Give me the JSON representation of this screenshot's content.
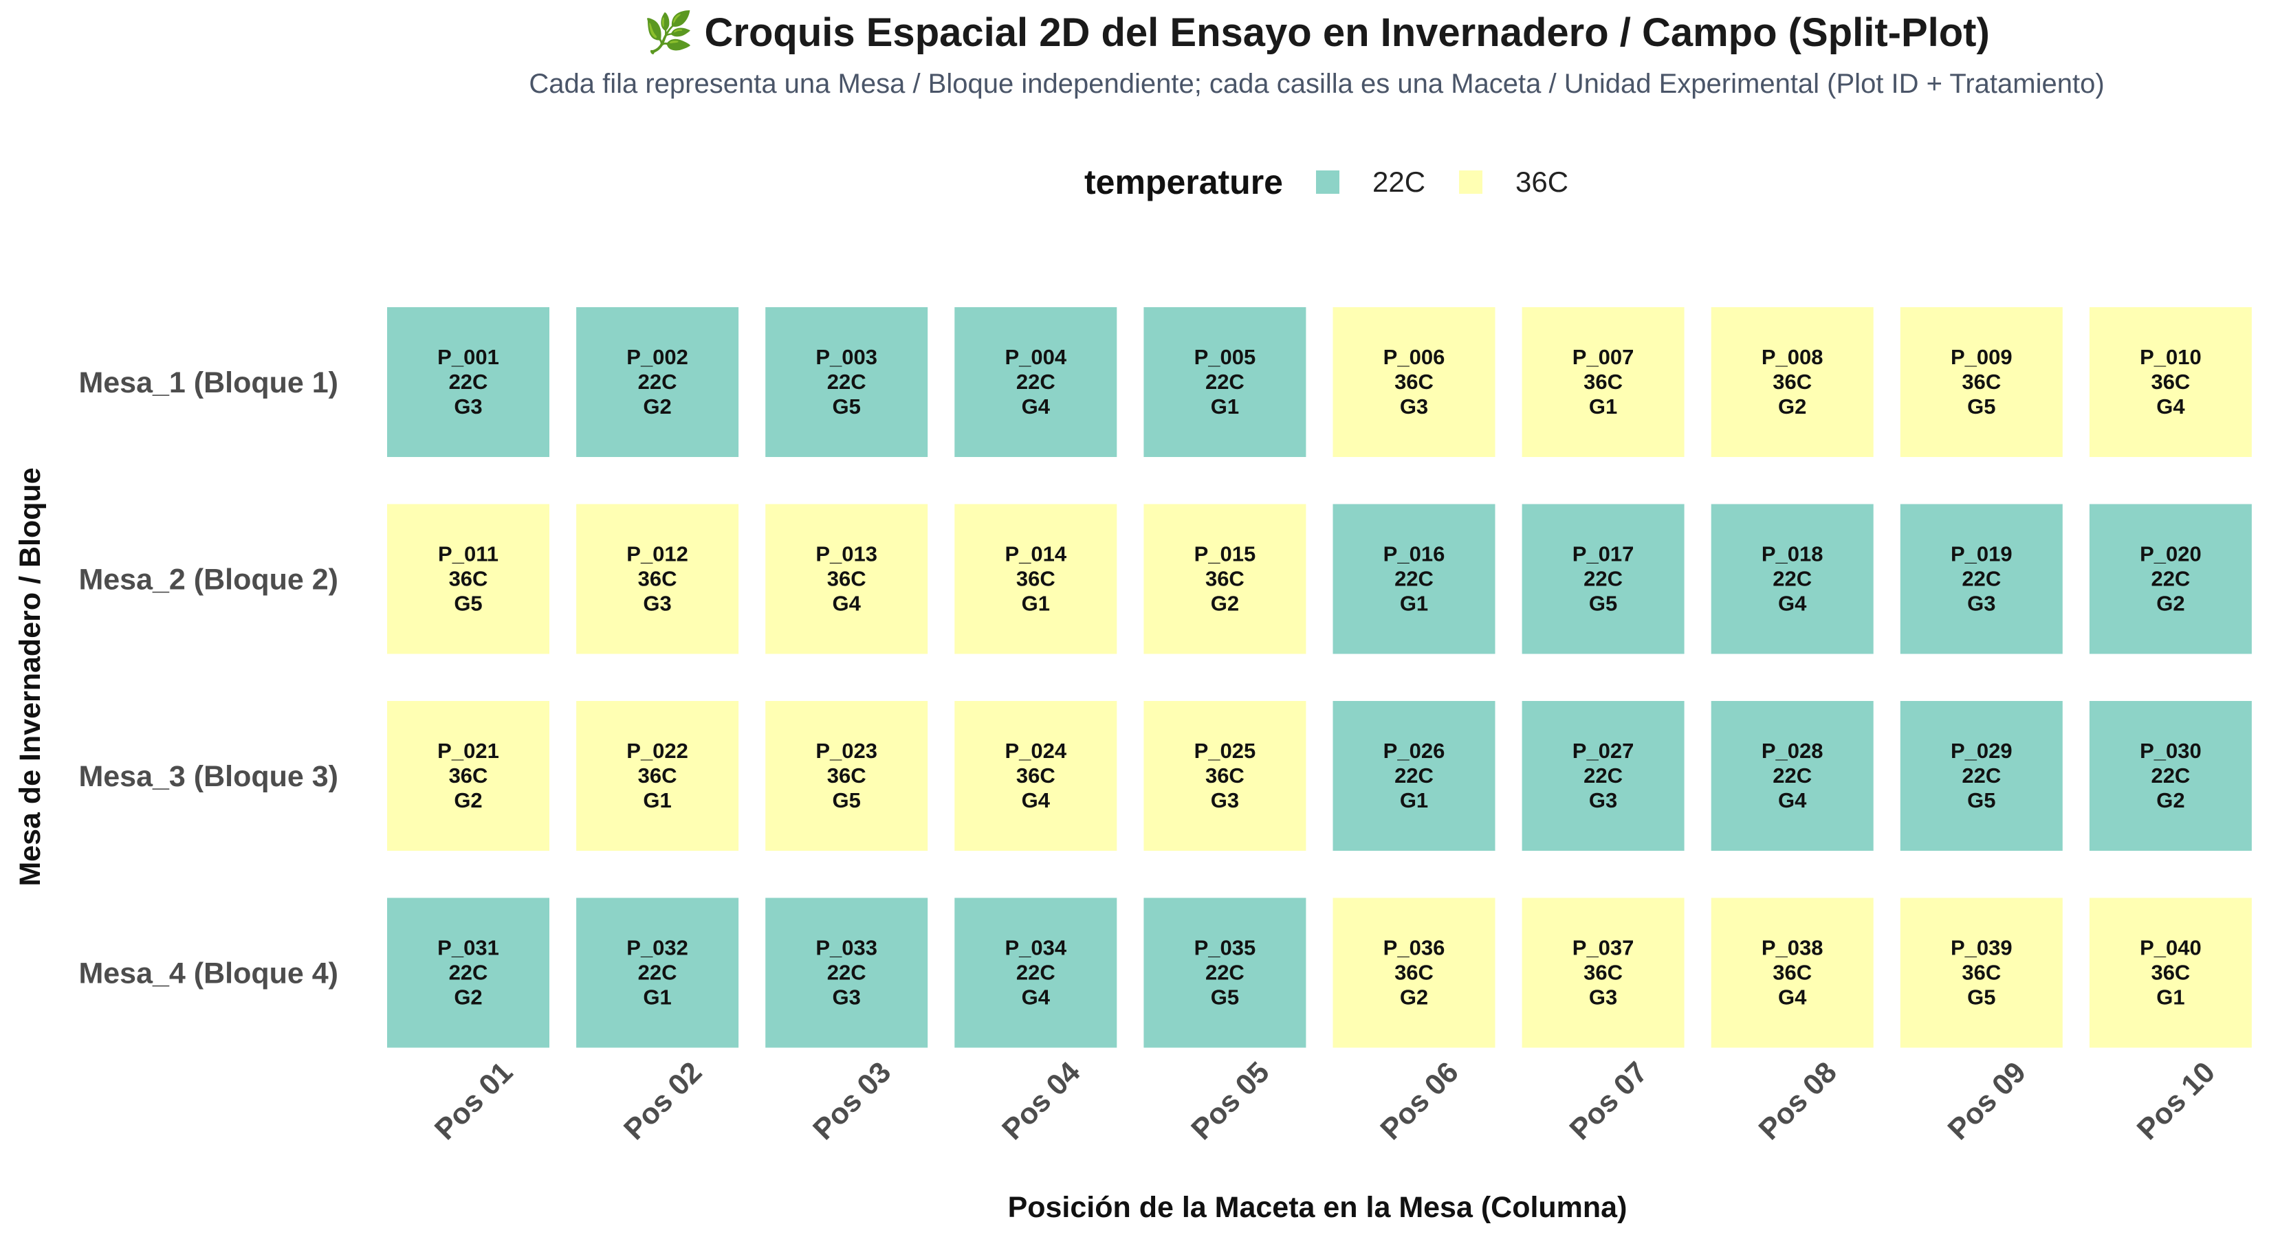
{
  "title": "🌿 Croquis Espacial 2D del Ensayo en Invernadero / Campo (Split-Plot)",
  "subtitle": "Cada fila representa una Mesa / Bloque independiente; cada casilla es una Maceta / Unidad Experimental (Plot ID + Tratamiento)",
  "chart_data": {
    "type": "heatmap",
    "xlabel": "Posición de la Maceta en la Mesa (Columna)",
    "ylabel": "Mesa de Invernadero / Bloque",
    "x_categories": [
      "Pos 01",
      "Pos 02",
      "Pos 03",
      "Pos 04",
      "Pos 05",
      "Pos 06",
      "Pos 07",
      "Pos 08",
      "Pos 09",
      "Pos 10"
    ],
    "y_categories": [
      "Mesa_1 (Bloque 1)",
      "Mesa_2 (Bloque 2)",
      "Mesa_3 (Bloque 3)",
      "Mesa_4 (Bloque 4)"
    ],
    "legend": {
      "title": "temperature",
      "position": "top",
      "entries": [
        {
          "label": "22C",
          "color": "#8DD3C7"
        },
        {
          "label": "36C",
          "color": "#FFFFB3"
        }
      ]
    },
    "cells": [
      [
        {
          "plot": "P_001",
          "temperature": "22C",
          "genotype": "G3"
        },
        {
          "plot": "P_002",
          "temperature": "22C",
          "genotype": "G2"
        },
        {
          "plot": "P_003",
          "temperature": "22C",
          "genotype": "G5"
        },
        {
          "plot": "P_004",
          "temperature": "22C",
          "genotype": "G4"
        },
        {
          "plot": "P_005",
          "temperature": "22C",
          "genotype": "G1"
        },
        {
          "plot": "P_006",
          "temperature": "36C",
          "genotype": "G3"
        },
        {
          "plot": "P_007",
          "temperature": "36C",
          "genotype": "G1"
        },
        {
          "plot": "P_008",
          "temperature": "36C",
          "genotype": "G2"
        },
        {
          "plot": "P_009",
          "temperature": "36C",
          "genotype": "G5"
        },
        {
          "plot": "P_010",
          "temperature": "36C",
          "genotype": "G4"
        }
      ],
      [
        {
          "plot": "P_011",
          "temperature": "36C",
          "genotype": "G5"
        },
        {
          "plot": "P_012",
          "temperature": "36C",
          "genotype": "G3"
        },
        {
          "plot": "P_013",
          "temperature": "36C",
          "genotype": "G4"
        },
        {
          "plot": "P_014",
          "temperature": "36C",
          "genotype": "G1"
        },
        {
          "plot": "P_015",
          "temperature": "36C",
          "genotype": "G2"
        },
        {
          "plot": "P_016",
          "temperature": "22C",
          "genotype": "G1"
        },
        {
          "plot": "P_017",
          "temperature": "22C",
          "genotype": "G5"
        },
        {
          "plot": "P_018",
          "temperature": "22C",
          "genotype": "G4"
        },
        {
          "plot": "P_019",
          "temperature": "22C",
          "genotype": "G3"
        },
        {
          "plot": "P_020",
          "temperature": "22C",
          "genotype": "G2"
        }
      ],
      [
        {
          "plot": "P_021",
          "temperature": "36C",
          "genotype": "G2"
        },
        {
          "plot": "P_022",
          "temperature": "36C",
          "genotype": "G1"
        },
        {
          "plot": "P_023",
          "temperature": "36C",
          "genotype": "G5"
        },
        {
          "plot": "P_024",
          "temperature": "36C",
          "genotype": "G4"
        },
        {
          "plot": "P_025",
          "temperature": "36C",
          "genotype": "G3"
        },
        {
          "plot": "P_026",
          "temperature": "22C",
          "genotype": "G1"
        },
        {
          "plot": "P_027",
          "temperature": "22C",
          "genotype": "G3"
        },
        {
          "plot": "P_028",
          "temperature": "22C",
          "genotype": "G4"
        },
        {
          "plot": "P_029",
          "temperature": "22C",
          "genotype": "G5"
        },
        {
          "plot": "P_030",
          "temperature": "22C",
          "genotype": "G2"
        }
      ],
      [
        {
          "plot": "P_031",
          "temperature": "22C",
          "genotype": "G2"
        },
        {
          "plot": "P_032",
          "temperature": "22C",
          "genotype": "G1"
        },
        {
          "plot": "P_033",
          "temperature": "22C",
          "genotype": "G3"
        },
        {
          "plot": "P_034",
          "temperature": "22C",
          "genotype": "G4"
        },
        {
          "plot": "P_035",
          "temperature": "22C",
          "genotype": "G5"
        },
        {
          "plot": "P_036",
          "temperature": "36C",
          "genotype": "G2"
        },
        {
          "plot": "P_037",
          "temperature": "36C",
          "genotype": "G3"
        },
        {
          "plot": "P_038",
          "temperature": "36C",
          "genotype": "G4"
        },
        {
          "plot": "P_039",
          "temperature": "36C",
          "genotype": "G5"
        },
        {
          "plot": "P_040",
          "temperature": "36C",
          "genotype": "G1"
        }
      ]
    ]
  }
}
